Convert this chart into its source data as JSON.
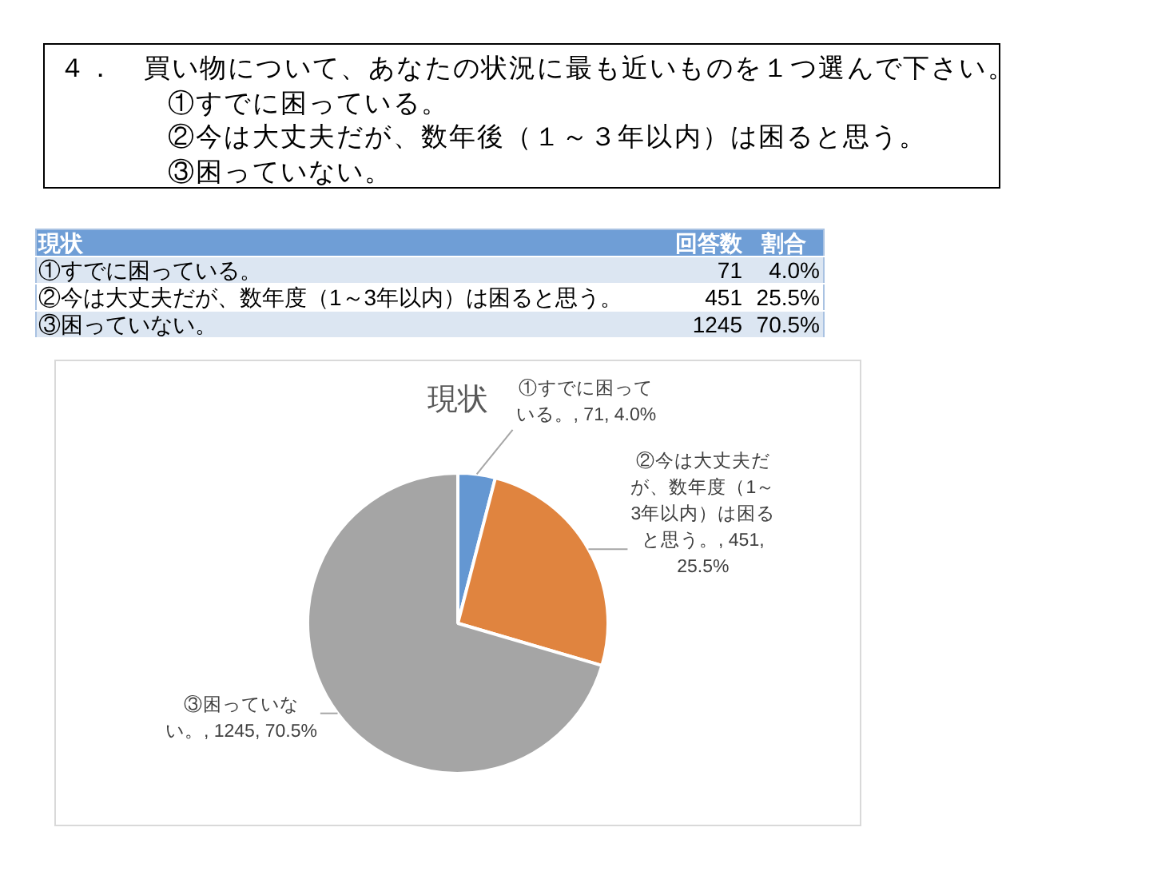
{
  "chart_data": [
    {
      "type": "other",
      "title": "４．　買い物について、あなたの状況に最も近いものを１つ選んで下さい。",
      "annotations": [
        "①すでに困っている。",
        "②今は大丈夫だが、数年後（１～３年以内）は困ると思う。",
        "③困っていない。"
      ]
    },
    {
      "type": "other",
      "title": "現状",
      "categories": [
        "①すでに困っている。",
        "②今は大丈夫だが、数年度（1～3年以内）は困ると思う。",
        "③困っていない。"
      ],
      "series": [
        {
          "name": "回答数",
          "colors": [
            "#dce6f2",
            "#ffffff",
            "#dce6f2"
          ],
          "values": [
            71,
            451,
            1245
          ]
        }
      ],
      "data_labels": true,
      "annotations": [
        "割合",
        "4.0%",
        "25.5%",
        "70.5%"
      ]
    },
    {
      "type": "pie",
      "title": "現状",
      "categories": [
        null,
        null,
        null
      ],
      "values": [
        71,
        451,
        1245
      ],
      "value_labels": [
        "①すでに困っている。, 71, 4.0%",
        "②今は大丈夫だが、数年度（1～3年以内）は困ると思う。, 451, 25.5%",
        "③困っていない。, 1245, 70.5%"
      ],
      "colors": [
        "#6497d2",
        "#e0843f",
        "#a5a5a5"
      ]
    }
  ]
}
